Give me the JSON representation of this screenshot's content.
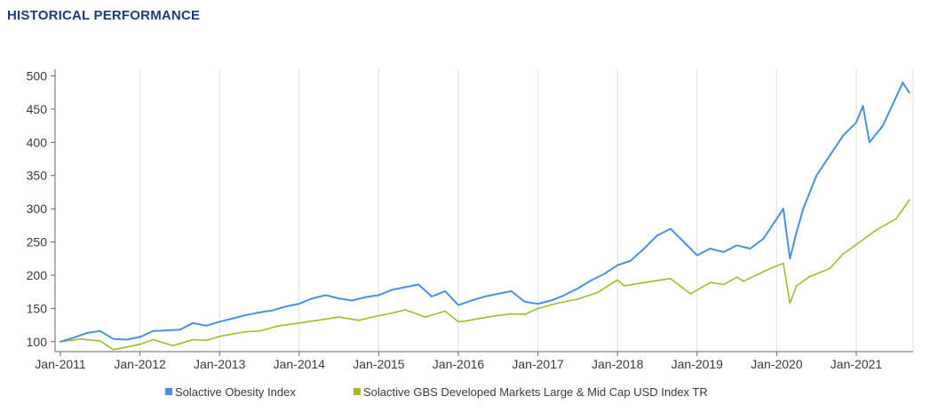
{
  "header": {
    "title": "HISTORICAL PERFORMANCE"
  },
  "chart_data": {
    "type": "line",
    "title": "",
    "xlabel": "",
    "ylabel": "",
    "ylim": [
      85,
      510
    ],
    "yticks": [
      100,
      150,
      200,
      250,
      300,
      350,
      400,
      450,
      500
    ],
    "x_ticks": [
      "Jan-2011",
      "Jan-2012",
      "Jan-2013",
      "Jan-2014",
      "Jan-2015",
      "Jan-2016",
      "Jan-2017",
      "Jan-2018",
      "Jan-2019",
      "Jan-2020",
      "Jan-2021"
    ],
    "grid": "vertical",
    "legend": "bottom",
    "series": [
      {
        "name": "Solactive Obesity Index",
        "color": "#4a90e2",
        "points": [
          [
            "2011-01",
            100
          ],
          [
            "2011-03",
            106
          ],
          [
            "2011-05",
            113
          ],
          [
            "2011-07",
            116
          ],
          [
            "2011-09",
            104
          ],
          [
            "2011-11",
            103
          ],
          [
            "2012-01",
            107
          ],
          [
            "2012-03",
            116
          ],
          [
            "2012-05",
            117
          ],
          [
            "2012-07",
            118
          ],
          [
            "2012-09",
            128
          ],
          [
            "2012-11",
            124
          ],
          [
            "2013-01",
            130
          ],
          [
            "2013-03",
            135
          ],
          [
            "2013-05",
            140
          ],
          [
            "2013-07",
            144
          ],
          [
            "2013-09",
            147
          ],
          [
            "2013-11",
            153
          ],
          [
            "2014-01",
            157
          ],
          [
            "2014-03",
            165
          ],
          [
            "2014-05",
            170
          ],
          [
            "2014-07",
            165
          ],
          [
            "2014-09",
            162
          ],
          [
            "2014-11",
            167
          ],
          [
            "2015-01",
            170
          ],
          [
            "2015-03",
            178
          ],
          [
            "2015-05",
            182
          ],
          [
            "2015-07",
            186
          ],
          [
            "2015-09",
            168
          ],
          [
            "2015-11",
            176
          ],
          [
            "2016-01",
            155
          ],
          [
            "2016-03",
            162
          ],
          [
            "2016-05",
            168
          ],
          [
            "2016-07",
            172
          ],
          [
            "2016-09",
            176
          ],
          [
            "2016-11",
            160
          ],
          [
            "2017-01",
            157
          ],
          [
            "2017-03",
            162
          ],
          [
            "2017-05",
            170
          ],
          [
            "2017-07",
            180
          ],
          [
            "2017-09",
            192
          ],
          [
            "2017-11",
            202
          ],
          [
            "2018-01",
            215
          ],
          [
            "2018-03",
            222
          ],
          [
            "2018-05",
            240
          ],
          [
            "2018-07",
            260
          ],
          [
            "2018-09",
            270
          ],
          [
            "2018-11",
            250
          ],
          [
            "2019-01",
            230
          ],
          [
            "2019-03",
            240
          ],
          [
            "2019-05",
            235
          ],
          [
            "2019-07",
            245
          ],
          [
            "2019-09",
            240
          ],
          [
            "2019-11",
            255
          ],
          [
            "2020-01",
            285
          ],
          [
            "2020-02",
            300
          ],
          [
            "2020-03",
            225
          ],
          [
            "2020-04",
            265
          ],
          [
            "2020-05",
            300
          ],
          [
            "2020-07",
            350
          ],
          [
            "2020-09",
            380
          ],
          [
            "2020-11",
            410
          ],
          [
            "2021-01",
            430
          ],
          [
            "2021-02",
            455
          ],
          [
            "2021-03",
            400
          ],
          [
            "2021-05",
            425
          ],
          [
            "2021-07",
            468
          ],
          [
            "2021-08",
            490
          ],
          [
            "2021-09",
            475
          ]
        ]
      },
      {
        "name": "Solactive GBS Developed Markets Large & Mid Cap USD Index TR",
        "color": "#9bbe2b",
        "points": [
          [
            "2011-01",
            100
          ],
          [
            "2011-04",
            104
          ],
          [
            "2011-07",
            101
          ],
          [
            "2011-09",
            88
          ],
          [
            "2011-11",
            92
          ],
          [
            "2012-01",
            96
          ],
          [
            "2012-03",
            103
          ],
          [
            "2012-06",
            94
          ],
          [
            "2012-09",
            103
          ],
          [
            "2012-11",
            102
          ],
          [
            "2013-01",
            108
          ],
          [
            "2013-05",
            115
          ],
          [
            "2013-07",
            116
          ],
          [
            "2013-10",
            124
          ],
          [
            "2014-01",
            128
          ],
          [
            "2014-03",
            131
          ],
          [
            "2014-07",
            137
          ],
          [
            "2014-10",
            132
          ],
          [
            "2014-12",
            137
          ],
          [
            "2015-03",
            143
          ],
          [
            "2015-05",
            148
          ],
          [
            "2015-08",
            137
          ],
          [
            "2015-11",
            146
          ],
          [
            "2016-01",
            130
          ],
          [
            "2016-02",
            131
          ],
          [
            "2016-06",
            138
          ],
          [
            "2016-09",
            142
          ],
          [
            "2016-11",
            141
          ],
          [
            "2017-01",
            150
          ],
          [
            "2017-04",
            158
          ],
          [
            "2017-07",
            164
          ],
          [
            "2017-10",
            174
          ],
          [
            "2018-01",
            193
          ],
          [
            "2018-02",
            184
          ],
          [
            "2018-05",
            189
          ],
          [
            "2018-09",
            195
          ],
          [
            "2018-12",
            172
          ],
          [
            "2019-03",
            189
          ],
          [
            "2019-05",
            186
          ],
          [
            "2019-07",
            197
          ],
          [
            "2019-08",
            191
          ],
          [
            "2019-12",
            210
          ],
          [
            "2020-02",
            218
          ],
          [
            "2020-03",
            158
          ],
          [
            "2020-04",
            184
          ],
          [
            "2020-06",
            198
          ],
          [
            "2020-09",
            210
          ],
          [
            "2020-11",
            232
          ],
          [
            "2021-01",
            246
          ],
          [
            "2021-04",
            268
          ],
          [
            "2021-07",
            285
          ],
          [
            "2021-09",
            313
          ]
        ]
      }
    ]
  }
}
